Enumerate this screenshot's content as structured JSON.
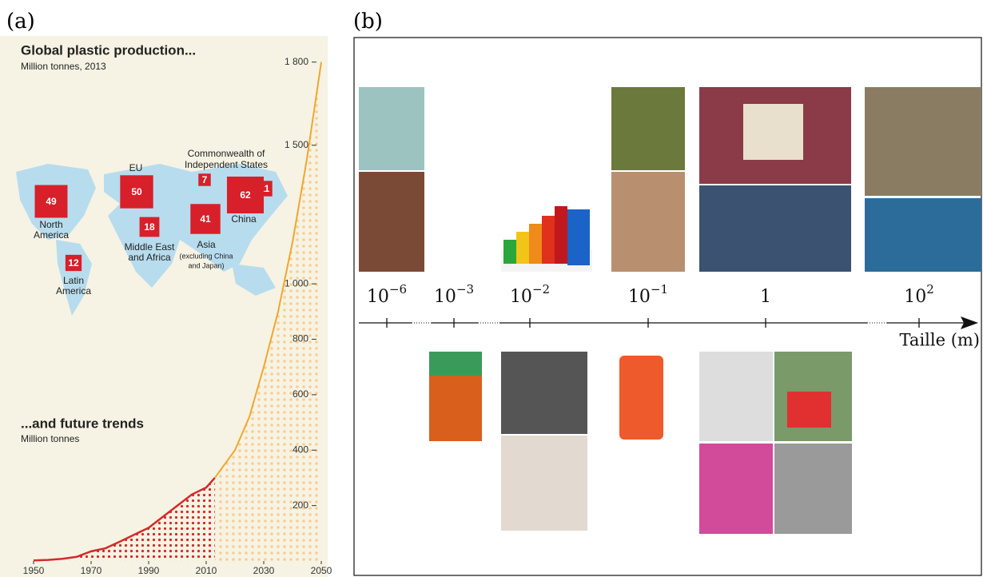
{
  "panel_labels": [
    "(a)",
    "(b)"
  ],
  "chart_data": {
    "type": "line",
    "title": "Global plastic production...",
    "subtitle": "Million tonnes, 2013",
    "annotation": "...and future trends",
    "annotation_subtitle": "Million tonnes",
    "xlim": [
      1950,
      2050
    ],
    "ylim": [
      0,
      1900
    ],
    "xticks": [
      1950,
      1970,
      1990,
      2010,
      2030,
      2050
    ],
    "yticks": [
      {
        "value": 200,
        "label": "200"
      },
      {
        "value": 400,
        "label": "400"
      },
      {
        "value": 600,
        "label": "600"
      },
      {
        "value": 800,
        "label": "800"
      },
      {
        "value": 1000,
        "label": "1 000"
      },
      {
        "value": 1500,
        "label": "1 500"
      },
      {
        "value": 1800,
        "label": "1 800"
      }
    ],
    "series": [
      {
        "color": "#d42a2a",
        "x": [
          1950,
          1955,
          1960,
          1965,
          1970,
          1975,
          1980,
          1985,
          1990,
          1995,
          2000,
          2005,
          2010,
          2013
        ],
        "values": [
          2,
          4,
          8,
          15,
          35,
          46,
          70,
          95,
          120,
          160,
          200,
          240,
          265,
          300
        ]
      },
      {
        "color": "#f2a62e",
        "x": [
          2013,
          2020,
          2025,
          2030,
          2035,
          2040,
          2045,
          2050
        ],
        "values": [
          300,
          400,
          520,
          700,
          900,
          1150,
          1450,
          1800
        ]
      }
    ],
    "regions": [
      {
        "name": [
          "North",
          "America"
        ],
        "value": 49
      },
      {
        "name": [
          "EU"
        ],
        "value": 50
      },
      {
        "name": [
          "Commonwealth of",
          "Independent States"
        ],
        "value": 7
      },
      {
        "name": [
          "Japan"
        ],
        "value": 11
      },
      {
        "name": [
          "Latin",
          "America"
        ],
        "value": 12
      },
      {
        "name": [
          "Middle East",
          "and Africa"
        ],
        "value": 18
      },
      {
        "name": [
          "China"
        ],
        "value": 62
      },
      {
        "name": [
          "Asia"
        ],
        "note": [
          "(excluding China",
          "and Japan)"
        ],
        "value": 41
      }
    ]
  },
  "scale_diagram": {
    "axis_label": "Taille (m)",
    "ticks": [
      {
        "base": "10",
        "exp": "−6"
      },
      {
        "base": "10",
        "exp": "−3"
      },
      {
        "base": "10",
        "exp": "−2"
      },
      {
        "base": "10",
        "exp": "−1"
      },
      {
        "base": "1"
      },
      {
        "base": "10",
        "exp": "2"
      }
    ]
  }
}
